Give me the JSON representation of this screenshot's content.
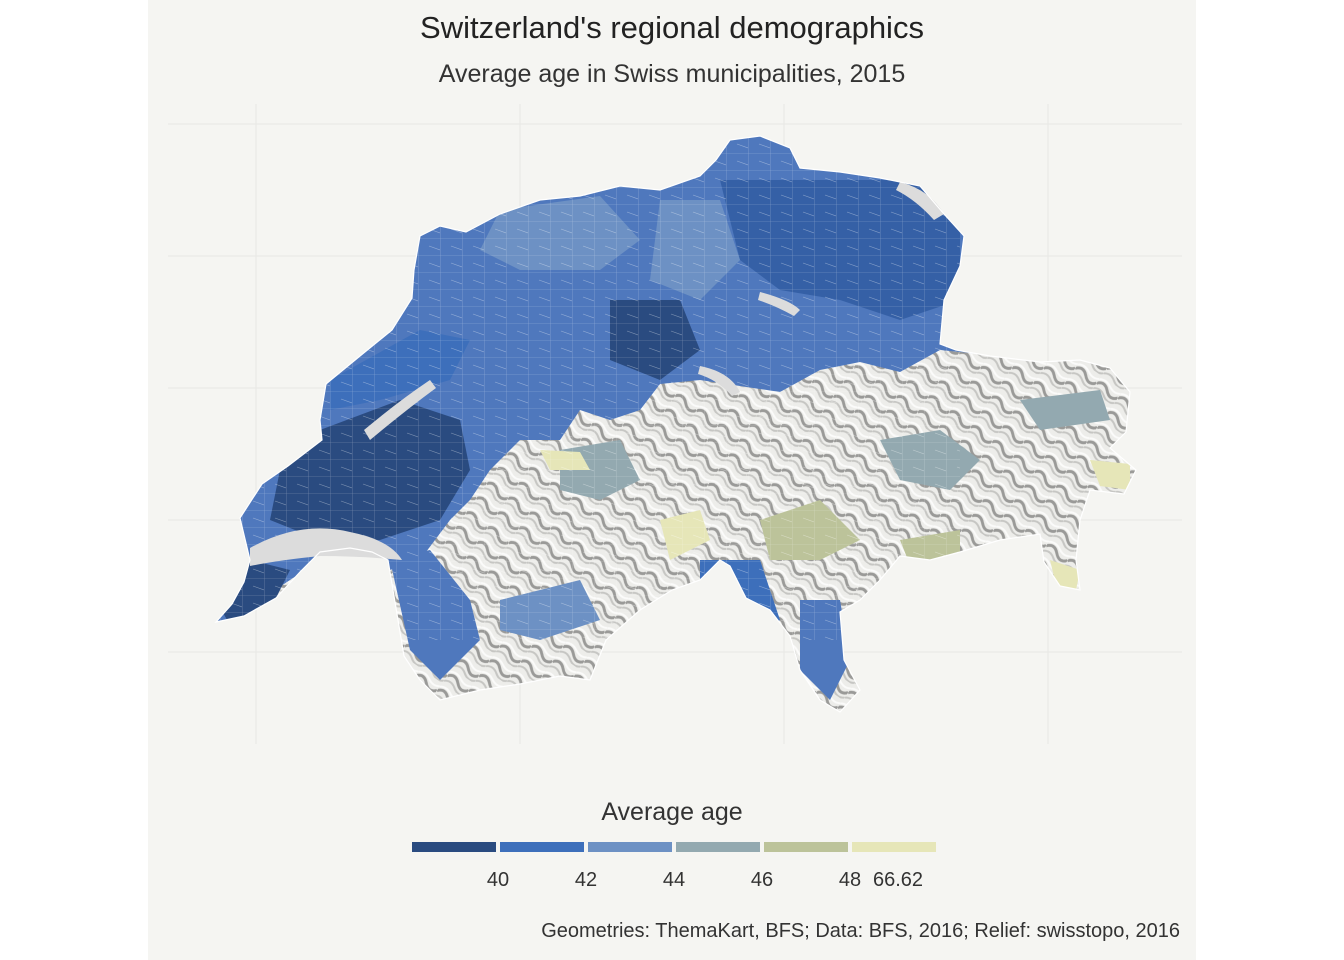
{
  "title": "Switzerland's regional demographics",
  "subtitle": "Average age in Swiss municipalities, 2015",
  "legend": {
    "title": "Average age",
    "breaks": [
      "40",
      "42",
      "44",
      "46",
      "48",
      "66.62"
    ],
    "colors": [
      "#2a4b80",
      "#3d6fbb",
      "#6d91c4",
      "#93a9b0",
      "#bcc39a",
      "#e6e6b8"
    ]
  },
  "caption": "Geometries: ThemaKart, BFS; Data: BFS, 2016; Relief: swisstopo, 2016",
  "colors": {
    "background": "#f5f5f2",
    "grid": "#e8e8e4",
    "relief_light": "#f2f2f0",
    "relief_dark": "#8a8a88",
    "lake": "#dcdcdc",
    "border": "#ffffff"
  }
}
